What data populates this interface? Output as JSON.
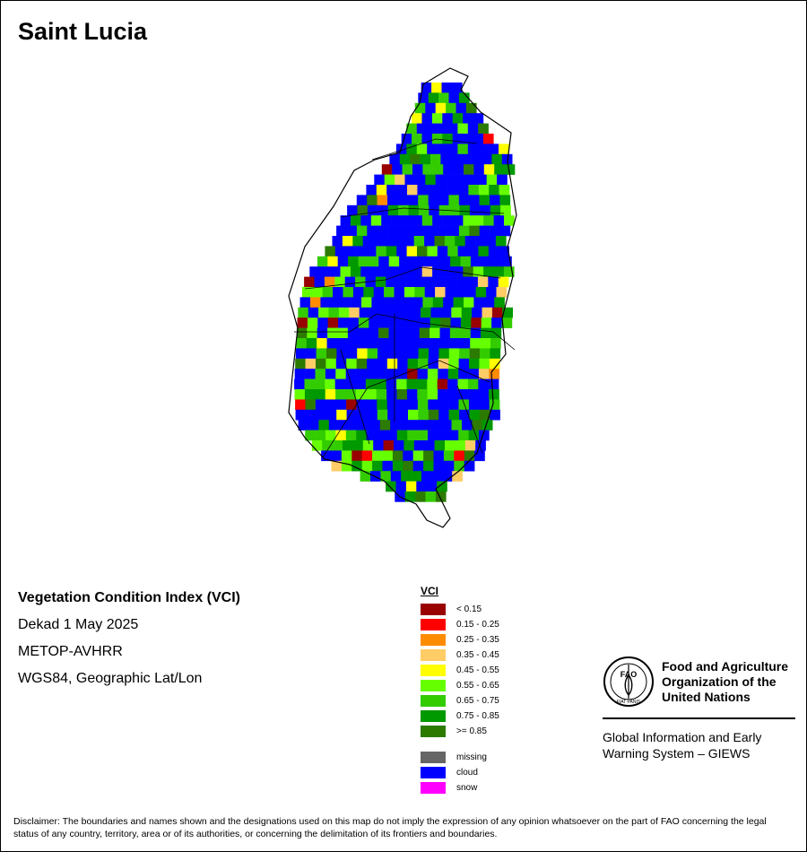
{
  "title": "Saint Lucia",
  "info": {
    "index_name": "Vegetation Condition Index (VCI)",
    "period": "Dekad 1 May 2025",
    "sensor": "METOP-AVHRR",
    "projection": "WGS84, Geographic Lat/Lon"
  },
  "legend": {
    "title": "VCI",
    "classes": [
      {
        "label": "< 0.15",
        "color": "#990000"
      },
      {
        "label": "0.15 - 0.25",
        "color": "#ff0000"
      },
      {
        "label": "0.25 - 0.35",
        "color": "#ff8c00"
      },
      {
        "label": "0.35 - 0.45",
        "color": "#ffcc66"
      },
      {
        "label": "0.45 - 0.55",
        "color": "#ffff00"
      },
      {
        "label": "0.55 - 0.65",
        "color": "#66ff00"
      },
      {
        "label": "0.65 - 0.75",
        "color": "#33cc00"
      },
      {
        "label": "0.75 - 0.85",
        "color": "#009900"
      },
      {
        "label": ">= 0.85",
        "color": "#2d7a00"
      }
    ],
    "special": [
      {
        "label": "missing",
        "color": "#666666"
      },
      {
        "label": "cloud",
        "color": "#0000ff"
      },
      {
        "label": "snow",
        "color": "#ff00ff"
      }
    ]
  },
  "org": {
    "logo_text": "FAO",
    "logo_motto": "FIAT PANIS",
    "name_lines": [
      "Food and Agriculture",
      "Organization of the",
      "United Nations"
    ],
    "system_lines": [
      "Global Information and Early",
      "Warning System – GIEWS"
    ]
  },
  "disclaimer": "Disclaimer: The boundaries and names shown and the designations used on this map do not imply the expression of any opinion whatsoever on the part of FAO concerning the legal status of any country, territory, area or of its authorities, or concerning the delimitation of its frontiers and boundaries."
}
